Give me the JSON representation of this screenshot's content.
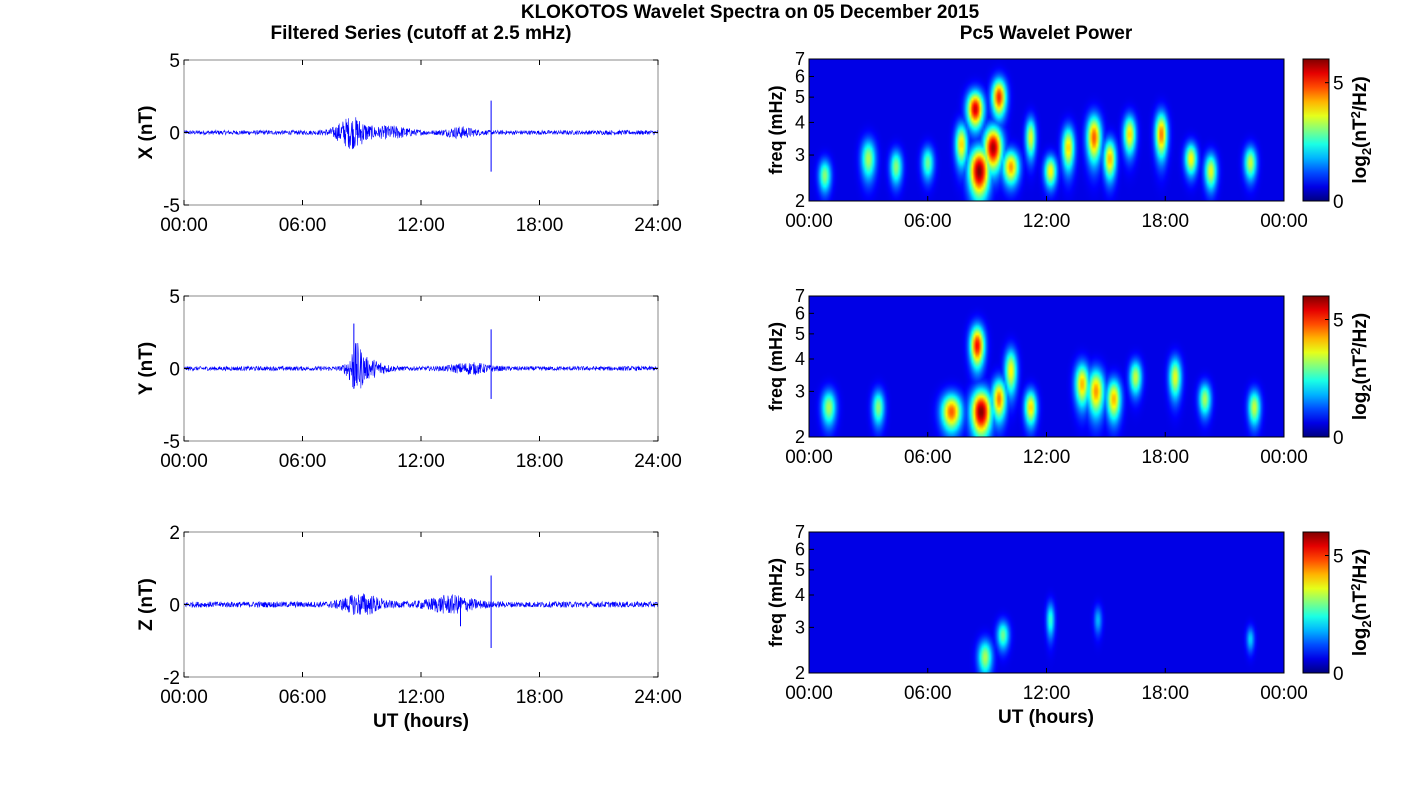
{
  "figure": {
    "title": "KLOKOTOS Wavelet Spectra on 05 December 2015",
    "left_title": "Filtered Series (cutoff at 2.5 mHz)",
    "right_title": "Pc5 Wavelet Power",
    "left_xlabel": "UT (hours)",
    "right_xlabel": "UT (hours)"
  },
  "colors": {
    "trace": "#0000ff",
    "axis": "#000000",
    "spectrum_bg": "#00008f"
  },
  "chart_data": [
    {
      "type": "line",
      "component": "X",
      "ylabel": "X (nT)",
      "xlim": [
        0,
        24
      ],
      "ylim": [
        -5,
        5
      ],
      "xticks": [
        0,
        6,
        12,
        18,
        24
      ],
      "xtick_labels": [
        "00:00",
        "06:00",
        "12:00",
        "18:00",
        "24:00"
      ],
      "yticks": [
        -5,
        0,
        5
      ],
      "ytick_labels": [
        "-5",
        "0",
        "5"
      ],
      "baseline_amplitude_nT": 0.15,
      "bursts": [
        {
          "t": 8.5,
          "width": 1.6,
          "amplitude_nT": 1.0
        },
        {
          "t": 10.5,
          "width": 2.0,
          "amplitude_nT": 0.35
        },
        {
          "t": 14.0,
          "width": 1.5,
          "amplitude_nT": 0.3
        }
      ],
      "spikes": [
        {
          "t": 15.55,
          "min_nT": -2.7,
          "max_nT": 2.2
        }
      ]
    },
    {
      "type": "line",
      "component": "Y",
      "ylabel": "Y (nT)",
      "xlim": [
        0,
        24
      ],
      "ylim": [
        -5,
        5
      ],
      "xticks": [
        0,
        6,
        12,
        18,
        24
      ],
      "xtick_labels": [
        "00:00",
        "06:00",
        "12:00",
        "18:00",
        "24:00"
      ],
      "yticks": [
        -5,
        0,
        5
      ],
      "ytick_labels": [
        "-5",
        "0",
        "5"
      ],
      "baseline_amplitude_nT": 0.15,
      "bursts": [
        {
          "t": 8.7,
          "width": 0.8,
          "amplitude_nT": 1.5
        },
        {
          "t": 9.5,
          "width": 1.5,
          "amplitude_nT": 0.5
        },
        {
          "t": 14.5,
          "width": 2.0,
          "amplitude_nT": 0.3
        }
      ],
      "spikes": [
        {
          "t": 8.6,
          "min_nT": -1.4,
          "max_nT": 3.1
        },
        {
          "t": 15.55,
          "min_nT": -2.1,
          "max_nT": 2.7
        }
      ]
    },
    {
      "type": "line",
      "component": "Z",
      "ylabel": "Z (nT)",
      "xlim": [
        0,
        24
      ],
      "ylim": [
        -2,
        2
      ],
      "xticks": [
        0,
        6,
        12,
        18,
        24
      ],
      "xtick_labels": [
        "00:00",
        "06:00",
        "12:00",
        "18:00",
        "24:00"
      ],
      "yticks": [
        -2,
        0,
        2
      ],
      "ytick_labels": [
        "-2",
        "0",
        "2"
      ],
      "baseline_amplitude_nT": 0.08,
      "bursts": [
        {
          "t": 9.0,
          "width": 2.0,
          "amplitude_nT": 0.25
        },
        {
          "t": 13.5,
          "width": 2.5,
          "amplitude_nT": 0.2
        }
      ],
      "spikes": [
        {
          "t": 15.55,
          "min_nT": -1.2,
          "max_nT": 0.8
        },
        {
          "t": 14.0,
          "min_nT": -0.6,
          "max_nT": 0.2
        }
      ]
    },
    {
      "type": "heatmap",
      "component": "X",
      "ylabel": "freq (mHz)",
      "ylim": [
        2,
        7
      ],
      "yscale": "log",
      "yticks": [
        2,
        3,
        4,
        5,
        6,
        7
      ],
      "xlim": [
        0,
        24
      ],
      "xticks": [
        0,
        6,
        12,
        18,
        24
      ],
      "xtick_labels": [
        "00:00",
        "06:00",
        "12:00",
        "18:00",
        "00:00"
      ],
      "colorbar_label": "log2(nT^2/Hz)",
      "colorbar_ticks": [
        0,
        5
      ],
      "clim": [
        0,
        6
      ],
      "blobs": [
        {
          "t": 8.6,
          "f": 2.6,
          "dt": 0.5,
          "df": 0.55,
          "power": 6.0
        },
        {
          "t": 8.4,
          "f": 4.5,
          "dt": 0.4,
          "df": 0.7,
          "power": 5.5
        },
        {
          "t": 9.3,
          "f": 3.2,
          "dt": 0.45,
          "df": 0.6,
          "power": 5.8
        },
        {
          "t": 9.6,
          "f": 5.0,
          "dt": 0.35,
          "df": 0.8,
          "power": 5.0
        },
        {
          "t": 10.2,
          "f": 2.7,
          "dt": 0.4,
          "df": 0.4,
          "power": 4.2
        },
        {
          "t": 7.7,
          "f": 3.3,
          "dt": 0.3,
          "df": 0.6,
          "power": 3.8
        },
        {
          "t": 11.2,
          "f": 3.5,
          "dt": 0.25,
          "df": 0.6,
          "power": 3.4
        },
        {
          "t": 12.2,
          "f": 2.6,
          "dt": 0.3,
          "df": 0.35,
          "power": 3.6
        },
        {
          "t": 13.1,
          "f": 3.2,
          "dt": 0.3,
          "df": 0.6,
          "power": 3.8
        },
        {
          "t": 14.4,
          "f": 3.5,
          "dt": 0.35,
          "df": 0.7,
          "power": 4.6
        },
        {
          "t": 15.2,
          "f": 2.9,
          "dt": 0.3,
          "df": 0.5,
          "power": 4.0
        },
        {
          "t": 16.2,
          "f": 3.6,
          "dt": 0.3,
          "df": 0.6,
          "power": 3.8
        },
        {
          "t": 17.8,
          "f": 3.6,
          "dt": 0.3,
          "df": 0.7,
          "power": 4.4
        },
        {
          "t": 19.3,
          "f": 2.9,
          "dt": 0.3,
          "df": 0.4,
          "power": 3.6
        },
        {
          "t": 20.3,
          "f": 2.6,
          "dt": 0.3,
          "df": 0.4,
          "power": 3.4
        },
        {
          "t": 22.3,
          "f": 2.8,
          "dt": 0.3,
          "df": 0.4,
          "power": 3.2
        },
        {
          "t": 3.0,
          "f": 2.9,
          "dt": 0.35,
          "df": 0.5,
          "power": 3.0
        },
        {
          "t": 4.4,
          "f": 2.7,
          "dt": 0.3,
          "df": 0.4,
          "power": 2.8
        },
        {
          "t": 0.8,
          "f": 2.5,
          "dt": 0.3,
          "df": 0.35,
          "power": 2.8
        },
        {
          "t": 6.0,
          "f": 2.8,
          "dt": 0.3,
          "df": 0.4,
          "power": 2.6
        }
      ]
    },
    {
      "type": "heatmap",
      "component": "Y",
      "ylabel": "freq (mHz)",
      "ylim": [
        2,
        7
      ],
      "yscale": "log",
      "yticks": [
        2,
        3,
        4,
        5,
        6,
        7
      ],
      "xlim": [
        0,
        24
      ],
      "xticks": [
        0,
        6,
        12,
        18,
        24
      ],
      "xtick_labels": [
        "00:00",
        "06:00",
        "12:00",
        "18:00",
        "00:00"
      ],
      "colorbar_label": "log2(nT^2/Hz)",
      "colorbar_ticks": [
        0,
        5
      ],
      "clim": [
        0,
        6
      ],
      "blobs": [
        {
          "t": 8.7,
          "f": 2.5,
          "dt": 0.5,
          "df": 0.5,
          "power": 6.0
        },
        {
          "t": 8.5,
          "f": 4.5,
          "dt": 0.35,
          "df": 0.8,
          "power": 5.2
        },
        {
          "t": 7.2,
          "f": 2.5,
          "dt": 0.5,
          "df": 0.4,
          "power": 4.6
        },
        {
          "t": 9.6,
          "f": 2.8,
          "dt": 0.35,
          "df": 0.5,
          "power": 4.4
        },
        {
          "t": 10.2,
          "f": 3.6,
          "dt": 0.3,
          "df": 0.7,
          "power": 3.6
        },
        {
          "t": 11.2,
          "f": 2.6,
          "dt": 0.3,
          "df": 0.4,
          "power": 3.8
        },
        {
          "t": 13.8,
          "f": 3.2,
          "dt": 0.35,
          "df": 0.6,
          "power": 4.0
        },
        {
          "t": 14.5,
          "f": 3.0,
          "dt": 0.4,
          "df": 0.6,
          "power": 4.2
        },
        {
          "t": 15.4,
          "f": 2.8,
          "dt": 0.35,
          "df": 0.5,
          "power": 4.0
        },
        {
          "t": 16.5,
          "f": 3.4,
          "dt": 0.3,
          "df": 0.5,
          "power": 3.2
        },
        {
          "t": 18.5,
          "f": 3.4,
          "dt": 0.3,
          "df": 0.6,
          "power": 3.4
        },
        {
          "t": 20.0,
          "f": 2.8,
          "dt": 0.3,
          "df": 0.4,
          "power": 3.0
        },
        {
          "t": 22.5,
          "f": 2.6,
          "dt": 0.3,
          "df": 0.4,
          "power": 3.2
        },
        {
          "t": 1.0,
          "f": 2.6,
          "dt": 0.35,
          "df": 0.4,
          "power": 3.0
        },
        {
          "t": 3.5,
          "f": 2.6,
          "dt": 0.3,
          "df": 0.4,
          "power": 2.8
        }
      ]
    },
    {
      "type": "heatmap",
      "component": "Z",
      "ylabel": "freq (mHz)",
      "ylim": [
        2,
        7
      ],
      "yscale": "log",
      "yticks": [
        2,
        3,
        4,
        5,
        6,
        7
      ],
      "xlim": [
        0,
        24
      ],
      "xticks": [
        0,
        6,
        12,
        18,
        24
      ],
      "xtick_labels": [
        "00:00",
        "06:00",
        "12:00",
        "18:00",
        "00:00"
      ],
      "colorbar_label": "log2(nT^2/Hz)",
      "colorbar_ticks": [
        0,
        5
      ],
      "clim": [
        0,
        6
      ],
      "blobs": [
        {
          "t": 8.9,
          "f": 2.3,
          "dt": 0.35,
          "df": 0.35,
          "power": 3.0
        },
        {
          "t": 9.8,
          "f": 2.8,
          "dt": 0.3,
          "df": 0.35,
          "power": 2.6
        },
        {
          "t": 12.2,
          "f": 3.2,
          "dt": 0.2,
          "df": 0.5,
          "power": 2.2
        },
        {
          "t": 14.6,
          "f": 3.2,
          "dt": 0.2,
          "df": 0.4,
          "power": 1.4
        },
        {
          "t": 22.3,
          "f": 2.7,
          "dt": 0.2,
          "df": 0.3,
          "power": 1.6
        }
      ]
    }
  ]
}
